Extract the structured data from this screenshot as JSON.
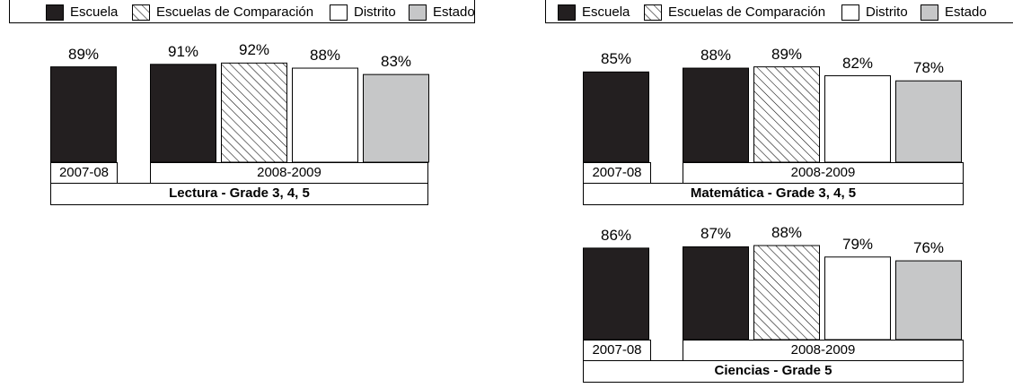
{
  "legend": {
    "items": [
      {
        "label": "Escuela",
        "color": "#231f20",
        "pattern": "solid"
      },
      {
        "label": "Escuelas de Comparación",
        "color": "#ffffff",
        "pattern": "hatch"
      },
      {
        "label": "Distrito",
        "color": "#ffffff",
        "pattern": "solid"
      },
      {
        "label": "Estado",
        "color": "#c6c7c8",
        "pattern": "solid"
      }
    ]
  },
  "chart_data": [
    {
      "type": "bar",
      "title": "Lectura - Grade 3, 4, 5",
      "groups": [
        "2007-08",
        "2008-2009"
      ],
      "series": [
        {
          "name": "Escuela",
          "group": "2007-08",
          "value": 89,
          "label": "89%"
        },
        {
          "name": "Escuela",
          "group": "2008-2009",
          "value": 91,
          "label": "91%"
        },
        {
          "name": "Escuelas de Comparación",
          "group": "2008-2009",
          "value": 92,
          "label": "92%"
        },
        {
          "name": "Distrito",
          "group": "2008-2009",
          "value": 88,
          "label": "88%"
        },
        {
          "name": "Estado",
          "group": "2008-2009",
          "value": 83,
          "label": "83%"
        }
      ]
    },
    {
      "type": "bar",
      "title": "Matemática - Grade 3, 4, 5",
      "groups": [
        "2007-08",
        "2008-2009"
      ],
      "series": [
        {
          "name": "Escuela",
          "group": "2007-08",
          "value": 85,
          "label": "85%"
        },
        {
          "name": "Escuela",
          "group": "2008-2009",
          "value": 88,
          "label": "88%"
        },
        {
          "name": "Escuelas de Comparación",
          "group": "2008-2009",
          "value": 89,
          "label": "89%"
        },
        {
          "name": "Distrito",
          "group": "2008-2009",
          "value": 82,
          "label": "82%"
        },
        {
          "name": "Estado",
          "group": "2008-2009",
          "value": 78,
          "label": "78%"
        }
      ]
    },
    {
      "type": "bar",
      "title": "Ciencias - Grade 5",
      "groups": [
        "2007-08",
        "2008-2009"
      ],
      "series": [
        {
          "name": "Escuela",
          "group": "2007-08",
          "value": 86,
          "label": "86%"
        },
        {
          "name": "Escuela",
          "group": "2008-2009",
          "value": 87,
          "label": "87%"
        },
        {
          "name": "Escuelas de Comparación",
          "group": "2008-2009",
          "value": 88,
          "label": "88%"
        },
        {
          "name": "Distrito",
          "group": "2008-2009",
          "value": 79,
          "label": "79%"
        },
        {
          "name": "Estado",
          "group": "2008-2009",
          "value": 76,
          "label": "76%"
        }
      ]
    }
  ]
}
